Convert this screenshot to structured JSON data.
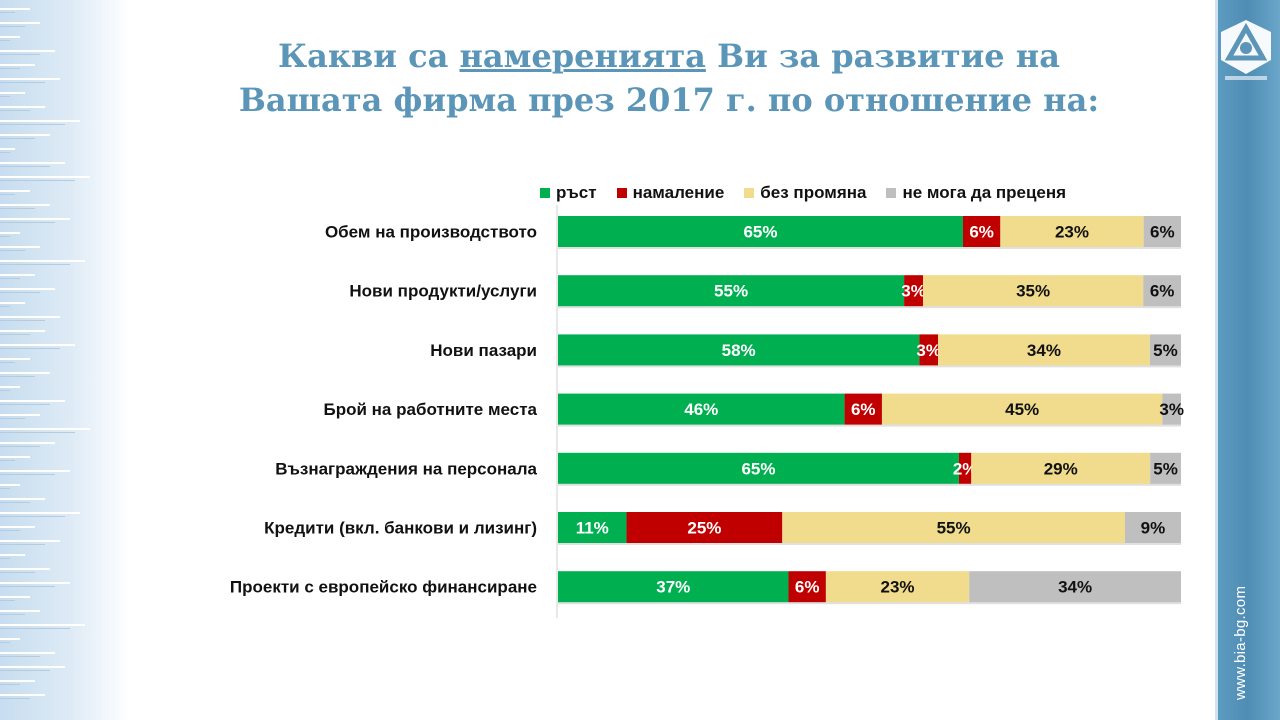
{
  "title": {
    "line1_pre": "Какви са ",
    "line1_underlined": "намеренията",
    "line1_post": " Ви за развитие на",
    "line2": "Вашата фирма през 2017 г. по отношение на:"
  },
  "site_url": "www.bia-bg.com",
  "colors": {
    "growth": "#00b050",
    "decrease": "#c00000",
    "no_change": "#f0dc8c",
    "cannot_assess": "#bfbfbf",
    "title": "#5b95b7"
  },
  "chart_data": {
    "type": "bar",
    "orientation": "horizontal",
    "stacked": true,
    "percent_stacked": true,
    "legend_position": "top",
    "grid": false,
    "categories": [
      "Обем на производството",
      "Нови продукти/услуги",
      "Нови пазари",
      "Брой на работните места",
      "Възнаграждения на персонала",
      "Кредити (вкл. банкови и лизинг)",
      "Проекти с европейско финансиране"
    ],
    "series": [
      {
        "name": "ръст",
        "color": "#00b050",
        "label_color": "#ffffff",
        "values": [
          65,
          55,
          58,
          46,
          65,
          11,
          37
        ]
      },
      {
        "name": "намаление",
        "color": "#c00000",
        "label_color": "#ffffff",
        "values": [
          6,
          3,
          3,
          6,
          2,
          25,
          6
        ]
      },
      {
        "name": "без промяна",
        "color": "#f0dc8c",
        "label_color": "#111111",
        "values": [
          23,
          35,
          34,
          45,
          29,
          55,
          23
        ]
      },
      {
        "name": "не мога да преценя",
        "color": "#bfbfbf",
        "label_color": "#111111",
        "values": [
          6,
          6,
          5,
          3,
          5,
          9,
          34
        ]
      }
    ]
  }
}
